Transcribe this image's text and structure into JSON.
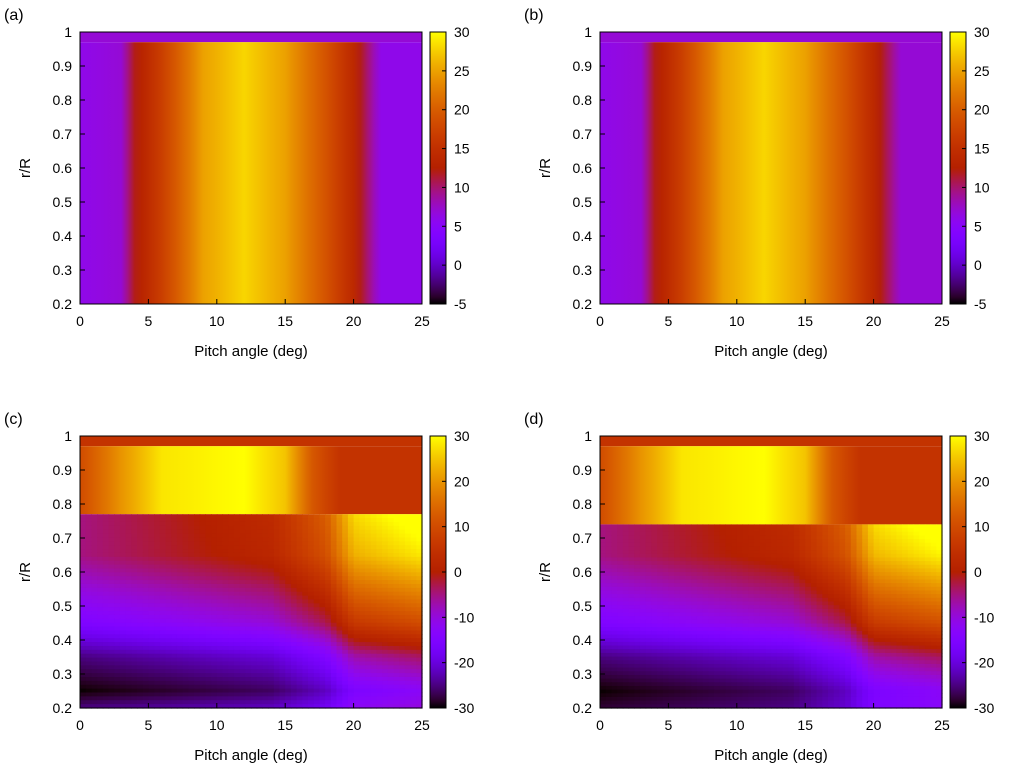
{
  "palette": {
    "colormap": "gnuplot-pm3d-black-purple-red-orange-yellow",
    "axis_color": "#000000",
    "top_band_color": "#7b7b7b"
  },
  "chart_data": [
    {
      "panel_label": "(a)",
      "type": "heatmap",
      "xlabel": "Pitch angle (deg)",
      "ylabel": "r/R",
      "xlim": [
        0,
        25
      ],
      "ylim": [
        0.2,
        1
      ],
      "xticks": [
        "0",
        "5",
        "10",
        "15",
        "20",
        "25"
      ],
      "yticks": [
        "0.2",
        "0.3",
        "0.4",
        "0.5",
        "0.6",
        "0.7",
        "0.8",
        "0.9",
        "1"
      ],
      "cbrange": [
        -5,
        30
      ],
      "cbticks": [
        "-5",
        "0",
        "5",
        "10",
        "15",
        "20",
        "25",
        "30"
      ],
      "grid": false,
      "regions": [
        {
          "r": [
            0.97,
            1.0
          ],
          "value": 7
        },
        {
          "r": [
            0.2,
            0.97
          ],
          "pitch_profile": [
            [
              0,
              6
            ],
            [
              3,
              7
            ],
            [
              4,
              12
            ],
            [
              6,
              17
            ],
            [
              9,
              25
            ],
            [
              12,
              28
            ],
            [
              15,
              25
            ],
            [
              18,
              19
            ],
            [
              20,
              14
            ],
            [
              22,
              6
            ],
            [
              25,
              6
            ]
          ]
        }
      ]
    },
    {
      "panel_label": "(b)",
      "type": "heatmap",
      "xlabel": "Pitch angle (deg)",
      "ylabel": "r/R",
      "xlim": [
        0,
        25
      ],
      "ylim": [
        0.2,
        1
      ],
      "xticks": [
        "0",
        "5",
        "10",
        "15",
        "20",
        "25"
      ],
      "yticks": [
        "0.2",
        "0.3",
        "0.4",
        "0.5",
        "0.6",
        "0.7",
        "0.8",
        "0.9",
        "1"
      ],
      "cbrange": [
        -5,
        30
      ],
      "cbticks": [
        "-5",
        "0",
        "5",
        "10",
        "15",
        "20",
        "25",
        "30"
      ],
      "grid": false,
      "regions": [
        {
          "r": [
            0.97,
            1.0
          ],
          "value": 7
        },
        {
          "r": [
            0.2,
            0.97
          ],
          "pitch_profile": [
            [
              0,
              6
            ],
            [
              3,
              7
            ],
            [
              4,
              12
            ],
            [
              6,
              17
            ],
            [
              9,
              25
            ],
            [
              12,
              28
            ],
            [
              15,
              25
            ],
            [
              18,
              19
            ],
            [
              20,
              14
            ],
            [
              22,
              7
            ],
            [
              25,
              7
            ]
          ]
        }
      ]
    },
    {
      "panel_label": "(c)",
      "type": "heatmap",
      "xlabel": "Pitch angle (deg)",
      "ylabel": "r/R",
      "xlim": [
        0,
        25
      ],
      "ylim": [
        0.2,
        1
      ],
      "xticks": [
        "0",
        "5",
        "10",
        "15",
        "20",
        "25"
      ],
      "yticks": [
        "0.2",
        "0.3",
        "0.4",
        "0.5",
        "0.6",
        "0.7",
        "0.8",
        "0.9",
        "1"
      ],
      "cbrange": [
        -30,
        30
      ],
      "cbticks": [
        "-30",
        "-20",
        "-10",
        "0",
        "10",
        "20",
        "30"
      ],
      "grid": false,
      "regions": [
        {
          "r": [
            0.97,
            1.0
          ],
          "value": 5
        },
        {
          "r": [
            0.77,
            0.97
          ],
          "pitch_profile": [
            [
              0,
              10
            ],
            [
              3,
              20
            ],
            [
              6,
              28
            ],
            [
              12,
              30
            ],
            [
              15,
              25
            ],
            [
              17,
              12
            ],
            [
              19,
              5
            ],
            [
              25,
              5
            ]
          ]
        },
        {
          "r": [
            0.2,
            0.77
          ],
          "radial_profile": [
            [
              0.2,
              -25
            ],
            [
              0.25,
              -30
            ],
            [
              0.35,
              -25
            ],
            [
              0.45,
              -15
            ],
            [
              0.55,
              -10
            ],
            [
              0.65,
              -5
            ],
            [
              0.77,
              -5
            ]
          ],
          "pitch_shift": [
            [
              0,
              0
            ],
            [
              14,
              8
            ],
            [
              18,
              18
            ],
            [
              20,
              32
            ],
            [
              25,
              38
            ]
          ]
        }
      ]
    },
    {
      "panel_label": "(d)",
      "type": "heatmap",
      "xlabel": "Pitch angle (deg)",
      "ylabel": "r/R",
      "xlim": [
        0,
        25
      ],
      "ylim": [
        0.2,
        1
      ],
      "xticks": [
        "0",
        "5",
        "10",
        "15",
        "20",
        "25"
      ],
      "yticks": [
        "0.2",
        "0.3",
        "0.4",
        "0.5",
        "0.6",
        "0.7",
        "0.8",
        "0.9",
        "1"
      ],
      "cbrange": [
        -30,
        30
      ],
      "cbticks": [
        "-30",
        "-20",
        "-10",
        "0",
        "10",
        "20",
        "30"
      ],
      "grid": false,
      "regions": [
        {
          "r": [
            0.97,
            1.0
          ],
          "value": 5
        },
        {
          "r": [
            0.74,
            0.97
          ],
          "pitch_profile": [
            [
              0,
              10
            ],
            [
              3,
              20
            ],
            [
              6,
              28
            ],
            [
              12,
              30
            ],
            [
              15,
              25
            ],
            [
              17,
              12
            ],
            [
              19,
              5
            ],
            [
              25,
              5
            ]
          ]
        },
        {
          "r": [
            0.2,
            0.74
          ],
          "radial_profile": [
            [
              0.2,
              -28
            ],
            [
              0.25,
              -30
            ],
            [
              0.35,
              -25
            ],
            [
              0.45,
              -15
            ],
            [
              0.55,
              -10
            ],
            [
              0.65,
              -5
            ],
            [
              0.74,
              -5
            ]
          ],
          "pitch_shift": [
            [
              0,
              0
            ],
            [
              14,
              8
            ],
            [
              18,
              18
            ],
            [
              20,
              32
            ],
            [
              25,
              38
            ]
          ]
        }
      ]
    }
  ]
}
